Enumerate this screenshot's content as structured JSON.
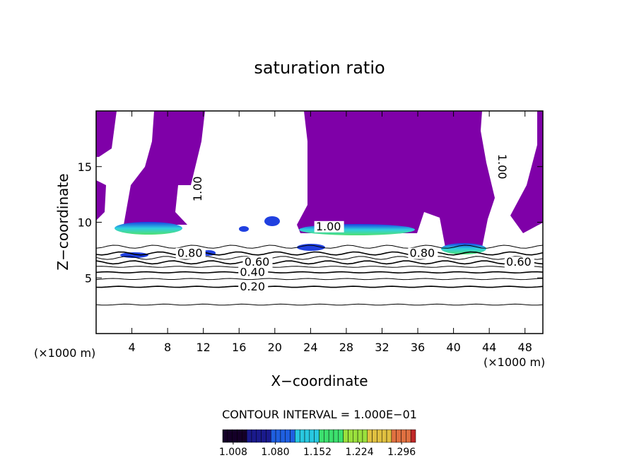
{
  "chart_data": {
    "type": "contour",
    "title": "saturation ratio",
    "xlabel": "X−coordinate",
    "ylabel": "Z−coordinate",
    "x_unit": "(×1000 m)",
    "y_unit": "(×1000 m)",
    "xlim": [
      0,
      50
    ],
    "ylim": [
      0,
      20
    ],
    "xticks": [
      4,
      8,
      12,
      16,
      20,
      24,
      28,
      32,
      36,
      40,
      44,
      48
    ],
    "yticks": [
      5,
      10,
      15
    ],
    "contours": [
      {
        "level": 0.1,
        "z": 2.6
      },
      {
        "level": 0.2,
        "z": 4.2,
        "label": "0.20"
      },
      {
        "level": 0.3,
        "z": 4.9
      },
      {
        "level": 0.4,
        "z": 5.5,
        "label": "0.40"
      },
      {
        "level": 0.5,
        "z": 6.0
      },
      {
        "level": 0.6,
        "z": 6.4,
        "label": "0.60"
      },
      {
        "level": 0.7,
        "z": 6.8
      },
      {
        "level": 0.8,
        "z": 7.2,
        "label": "0.80"
      },
      {
        "level": 0.9,
        "z": 7.8
      },
      {
        "level": 1.0,
        "z": 9.6,
        "label": "1.00"
      }
    ],
    "contour_note": "CONTOUR INTERVAL = 1.000E−01",
    "fill_color": "#7f00a8",
    "colorbar": {
      "lim": [
        0.99,
        1.32
      ],
      "ticks": [
        1.008,
        {
          "value": 1.08,
          "label": "1.080"
        },
        1.152,
        1.224,
        1.296
      ],
      "colors": [
        "#140028",
        "#1a1a8c",
        "#1f5fe0",
        "#28c8e0",
        "#3ce06e",
        "#9ae03c",
        "#e0c040",
        "#e07040",
        "#c02828"
      ]
    }
  }
}
